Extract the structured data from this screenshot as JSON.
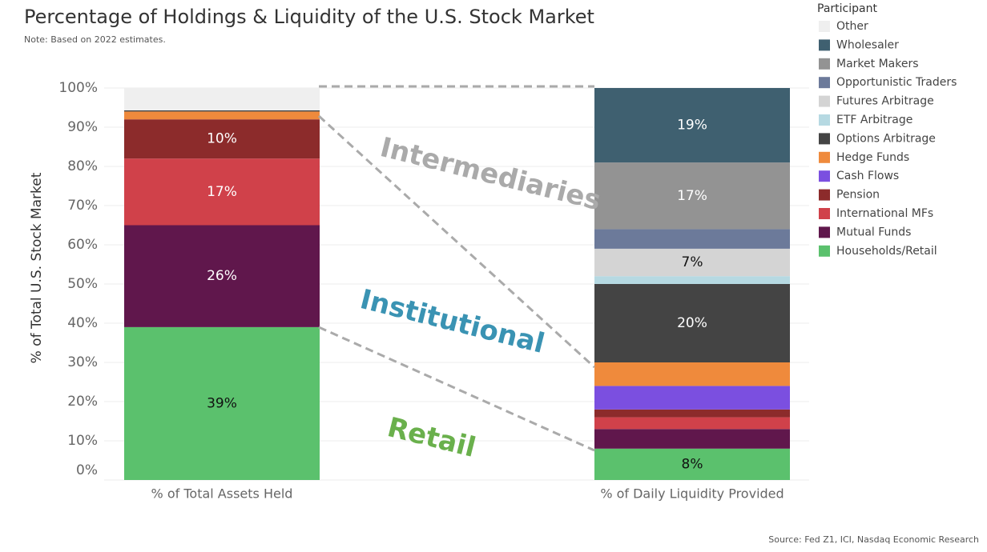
{
  "chart_data": {
    "type": "stacked_bar",
    "title": "Percentage of Holdings & Liquidity of the U.S. Stock Market",
    "subtitle": "Note: Based on 2022 estimates.",
    "y_label": "% of Total U.S. Stock Market",
    "source": "Source: Fed Z1, ICI, Nasdaq Economic Research",
    "legend_title": "Participant",
    "annotations": [
      "Intermediaries",
      "Institutional",
      "Retail"
    ],
    "categories": [
      "% of Total Assets Held",
      "% of Daily Liquidity Provided"
    ],
    "ylim": [
      0,
      100
    ],
    "yticks": [
      {
        "value": 0,
        "label": "0%"
      },
      {
        "value": 10,
        "label": "10%"
      },
      {
        "value": 20,
        "label": "20%"
      },
      {
        "value": 30,
        "label": "30%"
      },
      {
        "value": 40,
        "label": "40%"
      },
      {
        "value": 50,
        "label": "50%"
      },
      {
        "value": 60,
        "label": "60%"
      },
      {
        "value": 70,
        "label": "70%"
      },
      {
        "value": 80,
        "label": "80%"
      },
      {
        "value": 90,
        "label": "90%"
      },
      {
        "value": 100,
        "label": "100%"
      }
    ],
    "grid": true,
    "series": [
      {
        "name": "Households/Retail",
        "color": "#5bc16d",
        "values": [
          39,
          8
        ],
        "value_labels": [
          "39%",
          "8%"
        ]
      },
      {
        "name": "Mutual Funds",
        "color": "#60174c",
        "values": [
          26,
          5
        ],
        "value_labels": [
          "26%",
          null
        ]
      },
      {
        "name": "International MFs",
        "color": "#d0414a",
        "values": [
          17,
          3
        ],
        "value_labels": [
          "17%",
          null
        ]
      },
      {
        "name": "Pension",
        "color": "#8c2b2b",
        "values": [
          10,
          2
        ],
        "value_labels": [
          "10%",
          null
        ]
      },
      {
        "name": "Cash Flows",
        "color": "#7b4fe0",
        "values": [
          0,
          6
        ],
        "value_labels": [
          null,
          null
        ]
      },
      {
        "name": "Hedge Funds",
        "color": "#ef8a3c",
        "values": [
          2,
          6
        ],
        "value_labels": [
          null,
          null
        ]
      },
      {
        "name": "Options Arbitrage",
        "color": "#444444",
        "values": [
          0.3,
          20
        ],
        "value_labels": [
          null,
          "20%"
        ]
      },
      {
        "name": "ETF Arbitrage",
        "color": "#b6d9e2",
        "values": [
          0,
          2
        ],
        "value_labels": [
          null,
          null
        ]
      },
      {
        "name": "Futures Arbitrage",
        "color": "#d4d4d4",
        "values": [
          0,
          7
        ],
        "value_labels": [
          null,
          "7%"
        ]
      },
      {
        "name": "Opportunistic Traders",
        "color": "#6c7a9a",
        "values": [
          0,
          5
        ],
        "value_labels": [
          null,
          null
        ]
      },
      {
        "name": "Market Makers",
        "color": "#939393",
        "values": [
          0,
          17
        ],
        "value_labels": [
          null,
          "17%"
        ]
      },
      {
        "name": "Wholesaler",
        "color": "#3f6070",
        "values": [
          0,
          19
        ],
        "value_labels": [
          null,
          "19%"
        ]
      },
      {
        "name": "Other",
        "color": "#efefef",
        "values": [
          5.7,
          0
        ],
        "value_labels": [
          null,
          null
        ]
      }
    ]
  }
}
